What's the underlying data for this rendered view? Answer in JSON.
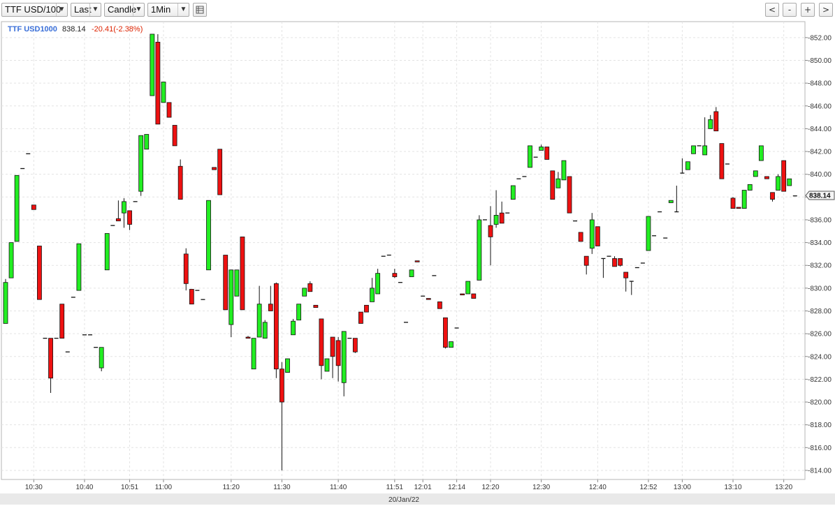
{
  "toolbar": {
    "symbol": "TTF USD/100",
    "price_type": "Last",
    "chart_style": "Candle",
    "interval": "1Min",
    "table_icon": "table-icon",
    "nav": [
      "<",
      "-",
      "+",
      ">"
    ]
  },
  "header": {
    "symbol": "TTF USD1000",
    "last": "838.14",
    "change": "-20.41(-2.38%)"
  },
  "colors": {
    "up": "#22ee22",
    "down": "#ee1111",
    "symbol": "#3a6fd8",
    "change": "#dd2200"
  },
  "chart_data": {
    "type": "candlestick",
    "title": "",
    "xlabel": "20/Jan/22",
    "ylabel": "",
    "ylim": [
      813.2,
      853.4
    ],
    "y_ticks": [
      852,
      850,
      848,
      846,
      844,
      842,
      840,
      838,
      836,
      834,
      832,
      830,
      828,
      826,
      824,
      822,
      820,
      818,
      816,
      814
    ],
    "last_price_label": "838.14",
    "x_tick_labels": [
      {
        "label": "10:30",
        "i": 5
      },
      {
        "label": "10:40",
        "i": 14
      },
      {
        "label": "10:51",
        "i": 22
      },
      {
        "label": "11:00",
        "i": 28
      },
      {
        "label": "11:20",
        "i": 40
      },
      {
        "label": "11:30",
        "i": 49
      },
      {
        "label": "11:40",
        "i": 59
      },
      {
        "label": "11:51",
        "i": 69
      },
      {
        "label": "12:01",
        "i": 74
      },
      {
        "label": "12:14",
        "i": 80
      },
      {
        "label": "12:20",
        "i": 86
      },
      {
        "label": "12:30",
        "i": 95
      },
      {
        "label": "12:40",
        "i": 105
      },
      {
        "label": "12:52",
        "i": 114
      },
      {
        "label": "13:00",
        "i": 120
      },
      {
        "label": "13:10",
        "i": 129
      },
      {
        "label": "13:20",
        "i": 138
      }
    ],
    "candles": [
      {
        "o": 826.9,
        "h": 830.8,
        "l": 826.9,
        "c": 830.5
      },
      {
        "o": 830.9,
        "h": 834.0,
        "l": 830.9,
        "c": 834.0
      },
      {
        "o": 834.1,
        "h": 839.9,
        "l": 834.1,
        "c": 839.9
      },
      {
        "o": 840.5,
        "h": 840.5,
        "l": 840.5,
        "c": 840.5
      },
      {
        "o": 841.8,
        "h": 841.8,
        "l": 841.8,
        "c": 841.8
      },
      {
        "o": 837.3,
        "h": 837.3,
        "l": 836.9,
        "c": 836.9
      },
      {
        "o": 833.7,
        "h": 833.7,
        "l": 829.0,
        "c": 829.0
      },
      {
        "o": 825.6,
        "h": 825.6,
        "l": 825.6,
        "c": 825.6
      },
      {
        "o": 825.6,
        "h": 825.6,
        "l": 820.8,
        "c": 822.1
      },
      {
        "o": 825.6,
        "h": 825.6,
        "l": 825.6,
        "c": 825.6
      },
      {
        "o": 828.6,
        "h": 828.6,
        "l": 825.6,
        "c": 825.6
      },
      {
        "o": 824.4,
        "h": 824.4,
        "l": 824.4,
        "c": 824.4
      },
      {
        "o": 829.2,
        "h": 829.2,
        "l": 829.2,
        "c": 829.2
      },
      {
        "o": 829.8,
        "h": 833.9,
        "l": 829.8,
        "c": 833.9
      },
      {
        "o": 825.9,
        "h": 825.9,
        "l": 825.9,
        "c": 825.9
      },
      {
        "o": 825.9,
        "h": 825.9,
        "l": 825.9,
        "c": 825.9
      },
      {
        "o": 824.8,
        "h": 824.8,
        "l": 824.8,
        "c": 824.8
      },
      {
        "o": 823.0,
        "h": 824.8,
        "l": 822.7,
        "c": 824.8
      },
      {
        "o": 831.6,
        "h": 834.8,
        "l": 831.6,
        "c": 834.8
      },
      {
        "o": 835.5,
        "h": 835.5,
        "l": 835.5,
        "c": 835.5
      },
      {
        "o": 836.1,
        "h": 837.7,
        "l": 835.9,
        "c": 835.9
      },
      {
        "o": 836.6,
        "h": 837.9,
        "l": 835.3,
        "c": 837.6
      },
      {
        "o": 836.8,
        "h": 836.8,
        "l": 835.1,
        "c": 835.6
      },
      {
        "o": 837.6,
        "h": 837.6,
        "l": 837.6,
        "c": 837.6
      },
      {
        "o": 838.5,
        "h": 843.4,
        "l": 838.1,
        "c": 843.4
      },
      {
        "o": 842.2,
        "h": 843.5,
        "l": 842.2,
        "c": 843.5
      },
      {
        "o": 846.9,
        "h": 852.3,
        "l": 846.9,
        "c": 852.3
      },
      {
        "o": 851.6,
        "h": 852.3,
        "l": 844.4,
        "c": 844.4
      },
      {
        "o": 846.3,
        "h": 848.1,
        "l": 846.3,
        "c": 848.1
      },
      {
        "o": 846.3,
        "h": 846.3,
        "l": 845.0,
        "c": 845.0
      },
      {
        "o": 844.3,
        "h": 844.3,
        "l": 842.5,
        "c": 842.5
      },
      {
        "o": 840.7,
        "h": 841.3,
        "l": 837.8,
        "c": 837.8
      },
      {
        "o": 833.0,
        "h": 833.5,
        "l": 829.8,
        "c": 830.4
      },
      {
        "o": 829.9,
        "h": 829.9,
        "l": 828.6,
        "c": 828.6
      },
      {
        "o": 829.8,
        "h": 829.8,
        "l": 829.8,
        "c": 829.8
      },
      {
        "o": 829.0,
        "h": 829.0,
        "l": 829.0,
        "c": 829.0
      },
      {
        "o": 831.6,
        "h": 837.7,
        "l": 831.6,
        "c": 837.7
      },
      {
        "o": 840.6,
        "h": 840.6,
        "l": 840.4,
        "c": 840.4
      },
      {
        "o": 842.2,
        "h": 842.2,
        "l": 838.2,
        "c": 838.2
      },
      {
        "o": 832.9,
        "h": 832.9,
        "l": 828.1,
        "c": 828.1
      },
      {
        "o": 826.8,
        "h": 831.6,
        "l": 825.7,
        "c": 831.6
      },
      {
        "o": 829.3,
        "h": 831.6,
        "l": 829.3,
        "c": 831.6
      },
      {
        "o": 834.5,
        "h": 834.5,
        "l": 828.1,
        "c": 828.1
      },
      {
        "o": 825.7,
        "h": 825.8,
        "l": 825.6,
        "c": 825.6
      },
      {
        "o": 822.9,
        "h": 825.6,
        "l": 822.9,
        "c": 825.6
      },
      {
        "o": 825.7,
        "h": 830.2,
        "l": 825.7,
        "c": 828.6
      },
      {
        "o": 825.6,
        "h": 827.2,
        "l": 825.6,
        "c": 827.0
      },
      {
        "o": 828.6,
        "h": 830.2,
        "l": 828.0,
        "c": 828.0
      },
      {
        "o": 830.4,
        "h": 830.5,
        "l": 822.1,
        "c": 822.9
      },
      {
        "o": 822.9,
        "h": 823.5,
        "l": 814.0,
        "c": 820.0
      },
      {
        "o": 822.6,
        "h": 823.8,
        "l": 822.6,
        "c": 823.8
      },
      {
        "o": 825.9,
        "h": 827.3,
        "l": 825.9,
        "c": 827.1
      },
      {
        "o": 827.2,
        "h": 828.6,
        "l": 827.2,
        "c": 828.6
      },
      {
        "o": 829.3,
        "h": 830.0,
        "l": 829.3,
        "c": 830.0
      },
      {
        "o": 830.4,
        "h": 830.6,
        "l": 829.7,
        "c": 829.7
      },
      {
        "o": 828.5,
        "h": 828.5,
        "l": 828.3,
        "c": 828.3
      },
      {
        "o": 827.3,
        "h": 827.3,
        "l": 822.0,
        "c": 823.2
      },
      {
        "o": 822.7,
        "h": 823.8,
        "l": 822.7,
        "c": 823.8
      },
      {
        "o": 825.7,
        "h": 825.7,
        "l": 822.1,
        "c": 824.0
      },
      {
        "o": 825.4,
        "h": 825.7,
        "l": 821.8,
        "c": 823.2
      },
      {
        "o": 821.7,
        "h": 826.2,
        "l": 820.5,
        "c": 826.2
      },
      {
        "o": 825.6,
        "h": 825.6,
        "l": 825.6,
        "c": 825.6
      },
      {
        "o": 825.6,
        "h": 825.6,
        "l": 824.3,
        "c": 824.4
      },
      {
        "o": 827.9,
        "h": 827.9,
        "l": 826.9,
        "c": 826.9
      },
      {
        "o": 828.5,
        "h": 828.5,
        "l": 827.9,
        "c": 827.9
      },
      {
        "o": 828.8,
        "h": 830.9,
        "l": 828.8,
        "c": 830.0
      },
      {
        "o": 829.5,
        "h": 831.7,
        "l": 829.5,
        "c": 831.3
      },
      {
        "o": 832.8,
        "h": 832.8,
        "l": 832.8,
        "c": 832.8
      },
      {
        "o": 832.9,
        "h": 832.9,
        "l": 832.9,
        "c": 832.9
      },
      {
        "o": 831.3,
        "h": 831.7,
        "l": 830.9,
        "c": 831.0
      },
      {
        "o": 830.5,
        "h": 830.5,
        "l": 830.5,
        "c": 830.5
      },
      {
        "o": 827.0,
        "h": 827.0,
        "l": 827.0,
        "c": 827.0
      },
      {
        "o": 831.0,
        "h": 831.6,
        "l": 831.0,
        "c": 831.6
      },
      {
        "o": 832.4,
        "h": 832.4,
        "l": 832.3,
        "c": 832.3
      },
      {
        "o": 829.3,
        "h": 829.3,
        "l": 829.3,
        "c": 829.3
      },
      {
        "o": 829.1,
        "h": 829.1,
        "l": 829.0,
        "c": 829.0
      },
      {
        "o": 831.1,
        "h": 831.1,
        "l": 831.1,
        "c": 831.1
      },
      {
        "o": 828.8,
        "h": 828.8,
        "l": 828.2,
        "c": 828.2
      },
      {
        "o": 827.4,
        "h": 827.4,
        "l": 824.7,
        "c": 824.8
      },
      {
        "o": 824.8,
        "h": 825.3,
        "l": 824.8,
        "c": 825.3
      },
      {
        "o": 826.5,
        "h": 826.5,
        "l": 826.5,
        "c": 826.5
      },
      {
        "o": 829.5,
        "h": 829.5,
        "l": 829.4,
        "c": 829.4
      },
      {
        "o": 829.5,
        "h": 830.6,
        "l": 829.5,
        "c": 830.6
      },
      {
        "o": 829.5,
        "h": 829.5,
        "l": 829.1,
        "c": 829.1
      },
      {
        "o": 830.7,
        "h": 836.4,
        "l": 830.7,
        "c": 836.0
      },
      {
        "o": 836.0,
        "h": 836.0,
        "l": 836.0,
        "c": 836.0
      },
      {
        "o": 835.5,
        "h": 837.2,
        "l": 832.0,
        "c": 834.5
      },
      {
        "o": 835.6,
        "h": 838.6,
        "l": 835.3,
        "c": 836.4
      },
      {
        "o": 836.6,
        "h": 837.6,
        "l": 835.7,
        "c": 835.7
      },
      {
        "o": 836.6,
        "h": 836.6,
        "l": 836.6,
        "c": 836.6
      },
      {
        "o": 837.8,
        "h": 839.0,
        "l": 837.8,
        "c": 839.0
      },
      {
        "o": 839.6,
        "h": 839.6,
        "l": 839.6,
        "c": 839.6
      },
      {
        "o": 839.8,
        "h": 839.8,
        "l": 839.8,
        "c": 839.8
      },
      {
        "o": 840.6,
        "h": 842.5,
        "l": 840.6,
        "c": 842.5
      },
      {
        "o": 841.5,
        "h": 841.5,
        "l": 841.5,
        "c": 841.5
      },
      {
        "o": 842.1,
        "h": 842.6,
        "l": 842.1,
        "c": 842.4
      },
      {
        "o": 842.4,
        "h": 842.4,
        "l": 841.3,
        "c": 841.3
      },
      {
        "o": 840.3,
        "h": 840.3,
        "l": 837.8,
        "c": 837.8
      },
      {
        "o": 838.8,
        "h": 840.2,
        "l": 838.8,
        "c": 839.6
      },
      {
        "o": 839.5,
        "h": 841.2,
        "l": 839.5,
        "c": 841.2
      },
      {
        "o": 839.8,
        "h": 839.8,
        "l": 836.6,
        "c": 836.6
      },
      {
        "o": 835.9,
        "h": 835.9,
        "l": 835.9,
        "c": 835.9
      },
      {
        "o": 834.9,
        "h": 834.9,
        "l": 834.1,
        "c": 834.1
      },
      {
        "o": 832.8,
        "h": 832.8,
        "l": 831.2,
        "c": 832.0
      },
      {
        "o": 833.5,
        "h": 836.6,
        "l": 833.0,
        "c": 836.0
      },
      {
        "o": 835.4,
        "h": 835.4,
        "l": 833.7,
        "c": 833.7
      },
      {
        "o": 832.6,
        "h": 832.6,
        "l": 830.9,
        "c": 832.6
      },
      {
        "o": 832.8,
        "h": 832.8,
        "l": 832.8,
        "c": 832.8
      },
      {
        "o": 832.6,
        "h": 832.8,
        "l": 831.9,
        "c": 831.9
      },
      {
        "o": 832.6,
        "h": 832.6,
        "l": 831.9,
        "c": 832.0
      },
      {
        "o": 831.4,
        "h": 831.4,
        "l": 829.7,
        "c": 830.9
      },
      {
        "o": 830.6,
        "h": 830.6,
        "l": 829.4,
        "c": 830.6
      },
      {
        "o": 831.8,
        "h": 831.8,
        "l": 831.8,
        "c": 831.8
      },
      {
        "o": 832.2,
        "h": 832.2,
        "l": 832.2,
        "c": 832.2
      },
      {
        "o": 833.3,
        "h": 836.3,
        "l": 833.3,
        "c": 836.3
      },
      {
        "o": 834.6,
        "h": 834.6,
        "l": 834.6,
        "c": 834.6
      },
      {
        "o": 836.7,
        "h": 836.7,
        "l": 836.7,
        "c": 836.7
      },
      {
        "o": 834.4,
        "h": 834.4,
        "l": 834.4,
        "c": 834.4
      },
      {
        "o": 837.5,
        "h": 837.5,
        "l": 837.5,
        "c": 837.7
      },
      {
        "o": 836.7,
        "h": 839.0,
        "l": 836.7,
        "c": 836.7
      },
      {
        "o": 840.1,
        "h": 841.4,
        "l": 840.1,
        "c": 840.1
      },
      {
        "o": 840.4,
        "h": 841.1,
        "l": 840.4,
        "c": 841.1
      },
      {
        "o": 841.8,
        "h": 842.5,
        "l": 841.8,
        "c": 842.5
      },
      {
        "o": 842.5,
        "h": 842.5,
        "l": 842.5,
        "c": 842.5
      },
      {
        "o": 841.7,
        "h": 845.0,
        "l": 841.7,
        "c": 842.5
      },
      {
        "o": 844.0,
        "h": 845.2,
        "l": 844.0,
        "c": 844.8
      },
      {
        "o": 845.5,
        "h": 845.9,
        "l": 843.8,
        "c": 843.8
      },
      {
        "o": 842.7,
        "h": 842.7,
        "l": 839.6,
        "c": 839.6
      },
      {
        "o": 840.9,
        "h": 840.9,
        "l": 840.9,
        "c": 840.9
      },
      {
        "o": 837.9,
        "h": 838.0,
        "l": 837.0,
        "c": 837.0
      },
      {
        "o": 837.1,
        "h": 837.1,
        "l": 837.0,
        "c": 837.0
      },
      {
        "o": 837.0,
        "h": 838.6,
        "l": 837.0,
        "c": 838.6
      },
      {
        "o": 838.6,
        "h": 839.1,
        "l": 838.6,
        "c": 839.1
      },
      {
        "o": 839.8,
        "h": 840.3,
        "l": 839.8,
        "c": 840.3
      },
      {
        "o": 841.2,
        "h": 842.5,
        "l": 841.2,
        "c": 842.5
      },
      {
        "o": 839.8,
        "h": 839.8,
        "l": 839.6,
        "c": 839.6
      },
      {
        "o": 838.4,
        "h": 838.4,
        "l": 837.6,
        "c": 837.8
      },
      {
        "o": 838.6,
        "h": 840.0,
        "l": 838.6,
        "c": 839.8
      },
      {
        "o": 841.2,
        "h": 841.2,
        "l": 838.5,
        "c": 838.5
      },
      {
        "o": 839.0,
        "h": 839.6,
        "l": 839.0,
        "c": 839.6
      },
      {
        "o": 838.1,
        "h": 838.1,
        "l": 838.1,
        "c": 838.1
      }
    ]
  }
}
